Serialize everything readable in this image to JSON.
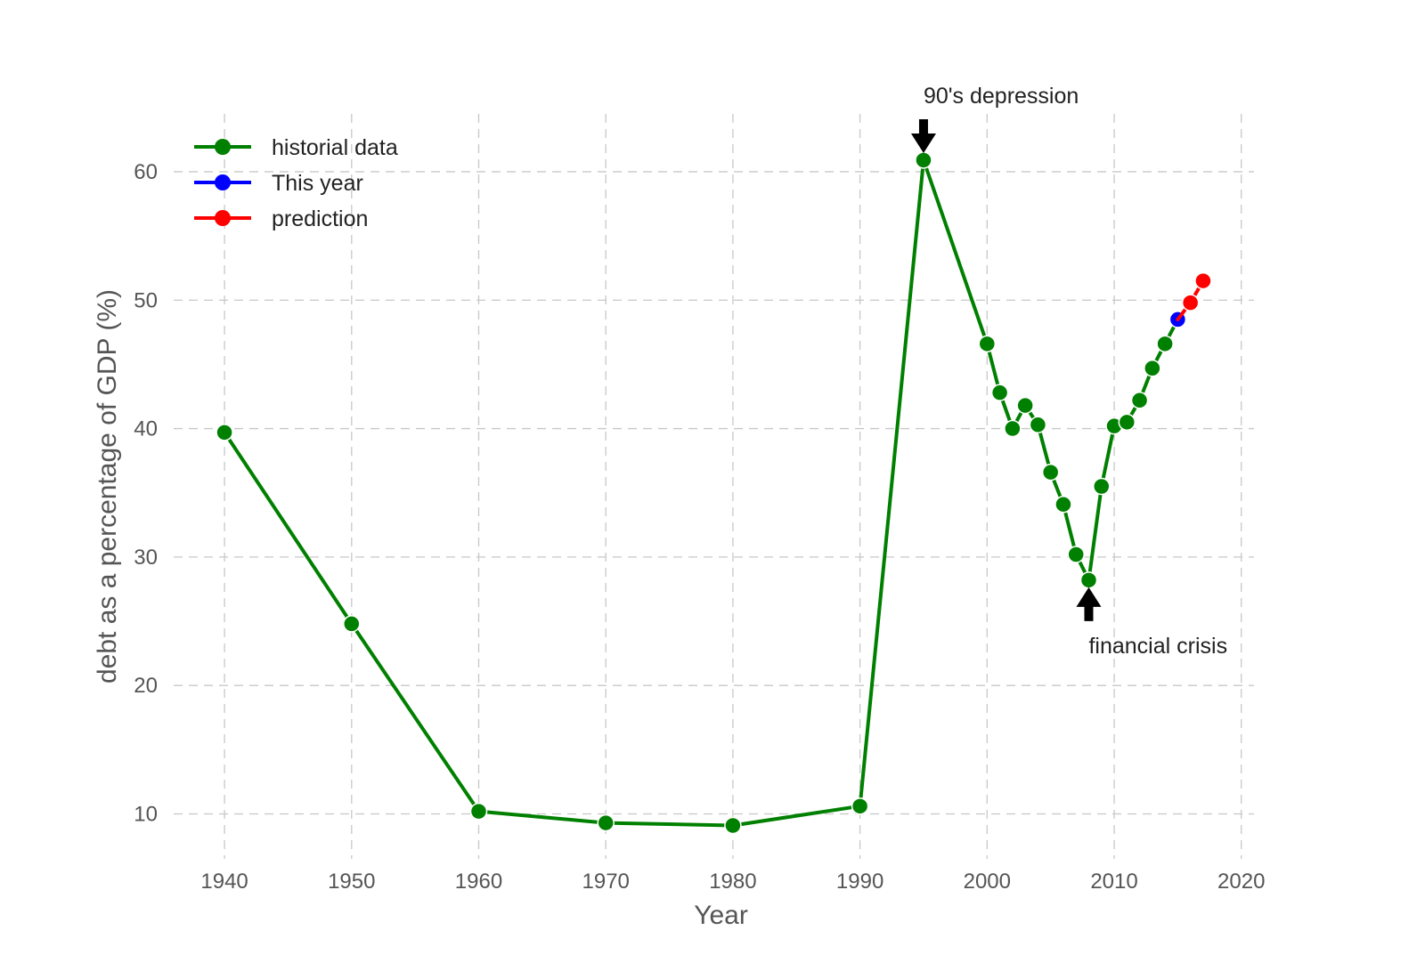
{
  "chart_data": {
    "type": "line",
    "title": "",
    "xlabel": "Year",
    "ylabel": "debt as a percentage of GDP (%)",
    "xlim": [
      1936,
      2021
    ],
    "ylim": [
      6.5,
      64.5
    ],
    "xticks": [
      1940,
      1950,
      1960,
      1970,
      1980,
      1990,
      2000,
      2010,
      2020
    ],
    "yticks": [
      10,
      20,
      30,
      40,
      50,
      60
    ],
    "grid": true,
    "legend_position": "top-left",
    "series": [
      {
        "name": "historial data",
        "color": "#008000",
        "x": [
          1940,
          1950,
          1960,
          1970,
          1980,
          1990,
          1995,
          2000,
          2001,
          2002,
          2003,
          2004,
          2005,
          2006,
          2007,
          2008,
          2009,
          2010,
          2011,
          2012,
          2013,
          2014,
          2015
        ],
        "y": [
          39.7,
          24.8,
          10.2,
          9.3,
          9.1,
          10.6,
          60.9,
          46.6,
          42.8,
          40.0,
          41.8,
          40.3,
          36.6,
          34.1,
          30.2,
          28.2,
          35.5,
          40.2,
          40.5,
          42.2,
          44.7,
          46.6,
          48.5
        ]
      },
      {
        "name": "This year",
        "color": "#0000ff",
        "x": [
          2015
        ],
        "y": [
          48.5
        ]
      },
      {
        "name": "prediction",
        "color": "#ff0000",
        "x": [
          2015,
          2016,
          2017
        ],
        "y": [
          48.5,
          49.8,
          51.5
        ]
      }
    ],
    "annotations": [
      {
        "text": "90's depression",
        "x": 1995,
        "y": 60.9,
        "arrow": "down"
      },
      {
        "text": "financial crisis",
        "x": 2008,
        "y": 28.2,
        "arrow": "up"
      }
    ]
  }
}
